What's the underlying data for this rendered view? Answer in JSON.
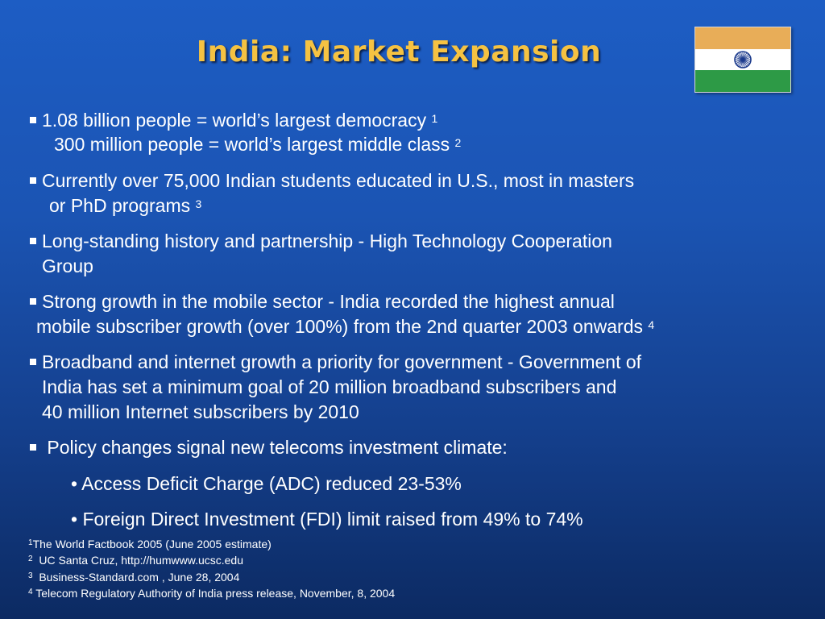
{
  "title": "India:  Market Expansion",
  "bullets": [
    {
      "lines": [
        {
          "text": "1.08 billion people = world’s largest democracy",
          "sup": "1"
        },
        {
          "text": "300 million people = world’s largest middle class",
          "sup": "2"
        }
      ]
    },
    {
      "lines": [
        {
          "text": "Currently over 75,000 Indian students educated in U.S., most in  masters"
        },
        {
          "text": "or PhD programs",
          "sup": "3"
        }
      ]
    },
    {
      "lines": [
        {
          "text": "Long-standing history and partnership - High Technology Cooperation"
        },
        {
          "text": "Group"
        }
      ]
    },
    {
      "lines": [
        {
          "text": "Strong growth in the mobile sector - India recorded the highest annual"
        },
        {
          "text": "mobile subscriber  growth (over 100%) from the 2nd quarter 2003 onwards",
          "sup": "4"
        }
      ]
    },
    {
      "lines": [
        {
          "text": "Broadband and internet growth a priority for government - Government of"
        },
        {
          "text": "India has set a minimum goal of 20 million broadband subscribers and"
        },
        {
          "text": "40 million Internet subscribers by 2010"
        }
      ]
    },
    {
      "lines": [
        {
          "text": "Policy changes signal new telecoms investment climate:"
        }
      ],
      "sub": [
        "• Access Deficit Charge (ADC) reduced 23-53%",
        "• Foreign Direct Investment (FDI) limit raised from 49% to 74%"
      ]
    }
  ],
  "footnotes": [
    {
      "num": "1",
      "text": "The World Factbook 2005 (June 2005 estimate)"
    },
    {
      "num": "2",
      "text": "UC Santa Cruz, http://humwww.ucsc.edu"
    },
    {
      "num": "3",
      "text": "Business-Standard.com , June 28, 2004"
    },
    {
      "num": "4",
      "text": "Telecom Regulatory Authority of India press release, November, 8, 2004"
    }
  ],
  "colors": {
    "title": "#f5c242",
    "text": "#ffffff",
    "background_top": "#1d5dc4",
    "background_bottom": "#0c2a62"
  },
  "icons": {
    "flag": "india-flag-icon",
    "bullet": "square-bullet-icon"
  }
}
